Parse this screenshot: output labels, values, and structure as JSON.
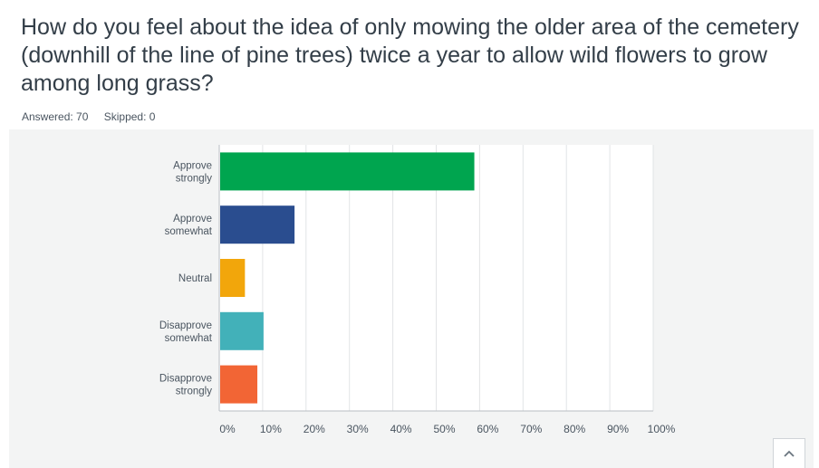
{
  "question": {
    "title": "How do you feel about the idea of only mowing the older area of the cemetery (downhill of the line of pine trees) twice a year to allow wild flowers to grow among long grass?"
  },
  "stats": {
    "answered": "Answered: 70",
    "skipped": "Skipped: 0"
  },
  "icons": {
    "scroll_top": "chevron-up-icon"
  },
  "chart_data": {
    "type": "bar",
    "orientation": "horizontal",
    "categories": [
      [
        "Approve",
        "strongly"
      ],
      [
        "Approve",
        "somewhat"
      ],
      [
        "Neutral"
      ],
      [
        "Disapprove",
        "somewhat"
      ],
      [
        "Disapprove",
        "strongly"
      ]
    ],
    "values": [
      58.57,
      17.14,
      5.71,
      10.0,
      8.57
    ],
    "colors": [
      "#00a54f",
      "#2a4d8f",
      "#f2a60b",
      "#42b1b9",
      "#f26535"
    ],
    "xlim": [
      0,
      100
    ],
    "xticks": [
      "0%",
      "10%",
      "20%",
      "30%",
      "40%",
      "50%",
      "60%",
      "70%",
      "80%",
      "90%",
      "100%"
    ],
    "grid": true,
    "title": "",
    "xlabel": "",
    "ylabel": ""
  }
}
